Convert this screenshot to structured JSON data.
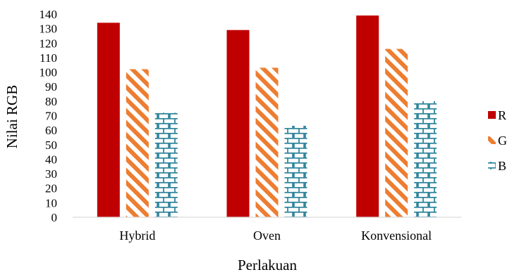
{
  "chart_data": {
    "type": "bar",
    "title": "",
    "xlabel": "Perlakuan",
    "ylabel": "Nilai RGB",
    "categories": [
      "Hybrid",
      "Oven",
      "Konvensional"
    ],
    "ylim": [
      0,
      140
    ],
    "yticks": [
      0,
      10,
      20,
      30,
      40,
      50,
      60,
      70,
      80,
      90,
      100,
      110,
      120,
      130,
      140
    ],
    "grid": false,
    "legend_position": "right",
    "series": [
      {
        "name": "R",
        "values": [
          134,
          129,
          139
        ],
        "color": "#c00000",
        "pattern": "solid"
      },
      {
        "name": "G",
        "values": [
          102,
          103,
          116
        ],
        "color": "#ed7d31",
        "pattern": "diagonal-stripes"
      },
      {
        "name": "B",
        "values": [
          72,
          63,
          80
        ],
        "color": "#31859c",
        "pattern": "brick"
      }
    ]
  }
}
